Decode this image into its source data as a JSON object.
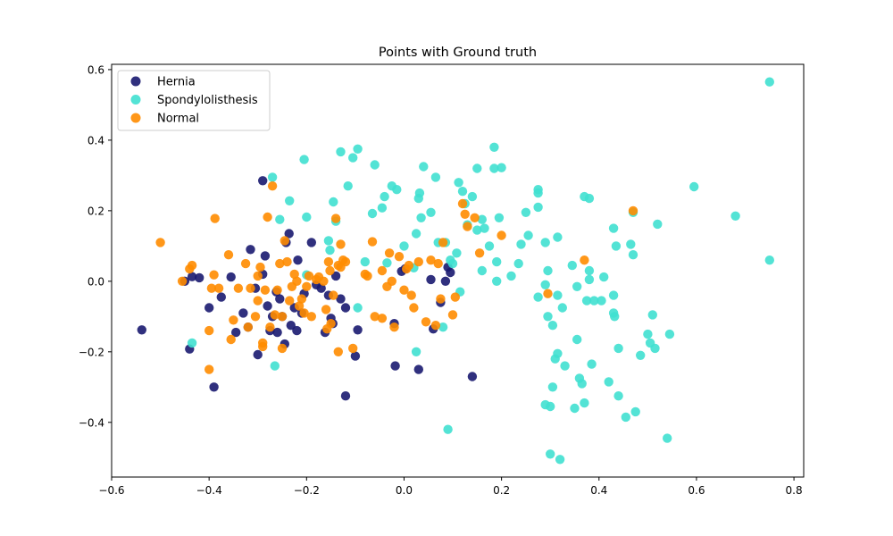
{
  "chart_data": {
    "type": "scatter",
    "title": "Points with Ground truth",
    "xlabel": "",
    "ylabel": "",
    "xlim": [
      -0.6,
      0.82
    ],
    "ylim": [
      -0.555,
      0.615
    ],
    "xticks": [
      -0.6,
      -0.4,
      -0.2,
      0.0,
      0.2,
      0.4,
      0.6,
      0.8
    ],
    "yticks": [
      -0.4,
      -0.2,
      0.0,
      0.2,
      0.4,
      0.6
    ],
    "xtick_labels": [
      "−0.6",
      "−0.4",
      "−0.2",
      "0.0",
      "0.2",
      "0.4",
      "0.6",
      "0.8"
    ],
    "ytick_labels": [
      "−0.4",
      "−0.2",
      "0.0",
      "0.2",
      "0.4",
      "0.6"
    ],
    "grid": false,
    "legend_position": "top-left",
    "series": [
      {
        "name": "Hernia",
        "color": "#191970",
        "points": [
          [
            -0.538,
            -0.138
          ],
          [
            -0.45,
            0.0
          ],
          [
            -0.435,
            0.013
          ],
          [
            -0.44,
            -0.192
          ],
          [
            -0.42,
            0.01
          ],
          [
            -0.4,
            -0.075
          ],
          [
            -0.39,
            -0.3
          ],
          [
            -0.375,
            -0.045
          ],
          [
            -0.355,
            0.012
          ],
          [
            -0.345,
            -0.145
          ],
          [
            -0.33,
            -0.09
          ],
          [
            -0.32,
            -0.13
          ],
          [
            -0.315,
            0.09
          ],
          [
            -0.305,
            -0.02
          ],
          [
            -0.3,
            -0.208
          ],
          [
            -0.29,
            0.285
          ],
          [
            -0.29,
            0.02
          ],
          [
            -0.285,
            0.072
          ],
          [
            -0.28,
            -0.07
          ],
          [
            -0.275,
            -0.14
          ],
          [
            -0.27,
            -0.1
          ],
          [
            -0.262,
            -0.03
          ],
          [
            -0.26,
            -0.145
          ],
          [
            -0.255,
            -0.05
          ],
          [
            -0.25,
            -0.1
          ],
          [
            -0.245,
            -0.178
          ],
          [
            -0.242,
            0.11
          ],
          [
            -0.236,
            0.135
          ],
          [
            -0.232,
            -0.125
          ],
          [
            -0.225,
            -0.075
          ],
          [
            -0.22,
            -0.14
          ],
          [
            -0.218,
            0.06
          ],
          [
            -0.21,
            -0.09
          ],
          [
            -0.205,
            -0.035
          ],
          [
            -0.19,
            0.11
          ],
          [
            -0.18,
            -0.01
          ],
          [
            -0.17,
            -0.02
          ],
          [
            -0.162,
            -0.145
          ],
          [
            -0.155,
            -0.04
          ],
          [
            -0.15,
            -0.105
          ],
          [
            -0.146,
            -0.12
          ],
          [
            -0.14,
            0.015
          ],
          [
            -0.13,
            -0.05
          ],
          [
            -0.12,
            -0.075
          ],
          [
            -0.12,
            -0.325
          ],
          [
            -0.1,
            -0.212
          ],
          [
            -0.095,
            -0.138
          ],
          [
            -0.02,
            -0.12
          ],
          [
            -0.018,
            -0.24
          ],
          [
            -0.005,
            0.028
          ],
          [
            0.002,
            0.035
          ],
          [
            0.03,
            -0.25
          ],
          [
            0.055,
            0.005
          ],
          [
            0.06,
            -0.135
          ],
          [
            0.075,
            -0.06
          ],
          [
            0.085,
            0.0
          ],
          [
            0.09,
            0.04
          ],
          [
            0.095,
            0.025
          ],
          [
            0.14,
            -0.27
          ]
        ]
      },
      {
        "name": "Spondylolisthesis",
        "color": "#40e0d0",
        "points": [
          [
            -0.435,
            -0.175
          ],
          [
            -0.27,
            0.295
          ],
          [
            -0.265,
            -0.24
          ],
          [
            -0.255,
            0.175
          ],
          [
            -0.235,
            0.228
          ],
          [
            -0.205,
            0.345
          ],
          [
            -0.2,
            0.182
          ],
          [
            -0.2,
            0.018
          ],
          [
            -0.155,
            0.115
          ],
          [
            -0.152,
            0.088
          ],
          [
            -0.145,
            0.225
          ],
          [
            -0.14,
            0.17
          ],
          [
            -0.13,
            0.367
          ],
          [
            -0.115,
            0.27
          ],
          [
            -0.105,
            0.35
          ],
          [
            -0.095,
            0.375
          ],
          [
            -0.095,
            -0.075
          ],
          [
            -0.08,
            0.055
          ],
          [
            -0.065,
            0.192
          ],
          [
            -0.06,
            0.33
          ],
          [
            -0.045,
            0.208
          ],
          [
            -0.04,
            0.24
          ],
          [
            -0.035,
            0.052
          ],
          [
            -0.025,
            0.27
          ],
          [
            -0.015,
            0.26
          ],
          [
            0.0,
            0.1
          ],
          [
            0.02,
            0.038
          ],
          [
            0.025,
            -0.2
          ],
          [
            0.025,
            0.135
          ],
          [
            0.03,
            0.235
          ],
          [
            0.032,
            0.25
          ],
          [
            0.035,
            0.18
          ],
          [
            0.04,
            0.325
          ],
          [
            0.055,
            0.195
          ],
          [
            0.065,
            0.295
          ],
          [
            0.07,
            0.11
          ],
          [
            0.085,
            0.11
          ],
          [
            0.08,
            -0.13
          ],
          [
            0.09,
            -0.42
          ],
          [
            0.095,
            0.06
          ],
          [
            0.1,
            0.05
          ],
          [
            0.108,
            0.08
          ],
          [
            0.112,
            0.28
          ],
          [
            0.115,
            -0.03
          ],
          [
            0.12,
            0.255
          ],
          [
            0.125,
            0.22
          ],
          [
            0.13,
            0.16
          ],
          [
            0.14,
            0.24
          ],
          [
            0.15,
            0.32
          ],
          [
            0.15,
            0.145
          ],
          [
            0.16,
            0.175
          ],
          [
            0.16,
            0.03
          ],
          [
            0.165,
            0.15
          ],
          [
            0.175,
            0.1
          ],
          [
            0.185,
            0.38
          ],
          [
            0.185,
            0.32
          ],
          [
            0.19,
            0.0
          ],
          [
            0.19,
            0.055
          ],
          [
            0.195,
            0.18
          ],
          [
            0.2,
            0.322
          ],
          [
            0.22,
            0.015
          ],
          [
            0.235,
            0.05
          ],
          [
            0.24,
            0.105
          ],
          [
            0.25,
            0.195
          ],
          [
            0.255,
            0.13
          ],
          [
            0.275,
            0.21
          ],
          [
            0.275,
            0.26
          ],
          [
            0.275,
            0.25
          ],
          [
            0.275,
            -0.045
          ],
          [
            0.29,
            -0.01
          ],
          [
            0.29,
            0.11
          ],
          [
            0.29,
            -0.35
          ],
          [
            0.295,
            0.03
          ],
          [
            0.295,
            -0.1
          ],
          [
            0.3,
            -0.355
          ],
          [
            0.3,
            -0.49
          ],
          [
            0.305,
            -0.125
          ],
          [
            0.305,
            -0.3
          ],
          [
            0.31,
            -0.22
          ],
          [
            0.315,
            -0.205
          ],
          [
            0.315,
            0.125
          ],
          [
            0.315,
            -0.04
          ],
          [
            0.32,
            -0.505
          ],
          [
            0.325,
            -0.075
          ],
          [
            0.33,
            -0.24
          ],
          [
            0.345,
            0.045
          ],
          [
            0.35,
            -0.36
          ],
          [
            0.355,
            -0.015
          ],
          [
            0.355,
            -0.165
          ],
          [
            0.36,
            -0.275
          ],
          [
            0.365,
            -0.29
          ],
          [
            0.37,
            0.24
          ],
          [
            0.37,
            -0.345
          ],
          [
            0.375,
            -0.055
          ],
          [
            0.38,
            0.03
          ],
          [
            0.38,
            0.235
          ],
          [
            0.38,
            0.005
          ],
          [
            0.385,
            -0.235
          ],
          [
            0.39,
            -0.055
          ],
          [
            0.405,
            -0.055
          ],
          [
            0.41,
            0.012
          ],
          [
            0.42,
            -0.285
          ],
          [
            0.43,
            -0.04
          ],
          [
            0.43,
            -0.09
          ],
          [
            0.43,
            0.15
          ],
          [
            0.432,
            -0.1
          ],
          [
            0.435,
            0.1
          ],
          [
            0.44,
            -0.325
          ],
          [
            0.44,
            -0.19
          ],
          [
            0.455,
            -0.385
          ],
          [
            0.465,
            0.105
          ],
          [
            0.47,
            0.195
          ],
          [
            0.47,
            0.075
          ],
          [
            0.475,
            -0.37
          ],
          [
            0.485,
            -0.21
          ],
          [
            0.5,
            -0.15
          ],
          [
            0.505,
            -0.175
          ],
          [
            0.51,
            -0.095
          ],
          [
            0.515,
            -0.19
          ],
          [
            0.52,
            0.162
          ],
          [
            0.54,
            -0.445
          ],
          [
            0.545,
            -0.15
          ],
          [
            0.595,
            0.268
          ],
          [
            0.68,
            0.185
          ],
          [
            0.75,
            0.565
          ],
          [
            0.75,
            0.06
          ]
        ]
      },
      {
        "name": "Normal",
        "color": "#ff8c00",
        "points": [
          [
            -0.5,
            0.11
          ],
          [
            -0.455,
            0.0
          ],
          [
            -0.44,
            0.035
          ],
          [
            -0.435,
            0.045
          ],
          [
            -0.4,
            -0.25
          ],
          [
            -0.4,
            -0.14
          ],
          [
            -0.395,
            -0.02
          ],
          [
            -0.39,
            0.018
          ],
          [
            -0.388,
            0.178
          ],
          [
            -0.38,
            -0.02
          ],
          [
            -0.36,
            0.075
          ],
          [
            -0.355,
            -0.165
          ],
          [
            -0.35,
            -0.11
          ],
          [
            -0.34,
            -0.02
          ],
          [
            -0.325,
            0.05
          ],
          [
            -0.32,
            -0.13
          ],
          [
            -0.315,
            -0.02
          ],
          [
            -0.305,
            -0.1
          ],
          [
            -0.3,
            0.015
          ],
          [
            -0.3,
            -0.055
          ],
          [
            -0.295,
            0.04
          ],
          [
            -0.29,
            -0.175
          ],
          [
            -0.29,
            -0.185
          ],
          [
            -0.285,
            -0.025
          ],
          [
            -0.28,
            0.182
          ],
          [
            -0.275,
            -0.13
          ],
          [
            -0.27,
            0.27
          ],
          [
            -0.265,
            -0.095
          ],
          [
            -0.26,
            -0.025
          ],
          [
            -0.255,
            0.05
          ],
          [
            -0.25,
            -0.1
          ],
          [
            -0.25,
            -0.19
          ],
          [
            -0.245,
            0.115
          ],
          [
            -0.24,
            0.055
          ],
          [
            -0.235,
            -0.055
          ],
          [
            -0.23,
            -0.015
          ],
          [
            -0.225,
            0.02
          ],
          [
            -0.22,
            0.0
          ],
          [
            -0.215,
            -0.07
          ],
          [
            -0.21,
            -0.05
          ],
          [
            -0.205,
            -0.09
          ],
          [
            -0.2,
            -0.015
          ],
          [
            -0.195,
            0.015
          ],
          [
            -0.19,
            -0.1
          ],
          [
            -0.18,
            0.005
          ],
          [
            -0.175,
            0.012
          ],
          [
            -0.165,
            0.0
          ],
          [
            -0.16,
            -0.08
          ],
          [
            -0.158,
            -0.135
          ],
          [
            -0.155,
            0.055
          ],
          [
            -0.152,
            0.03
          ],
          [
            -0.15,
            -0.12
          ],
          [
            -0.145,
            -0.04
          ],
          [
            -0.14,
            0.178
          ],
          [
            -0.135,
            0.045
          ],
          [
            -0.135,
            -0.2
          ],
          [
            -0.13,
            0.105
          ],
          [
            -0.13,
            0.04
          ],
          [
            -0.125,
            0.06
          ],
          [
            -0.12,
            0.055
          ],
          [
            -0.105,
            -0.19
          ],
          [
            -0.08,
            0.02
          ],
          [
            -0.075,
            0.015
          ],
          [
            -0.065,
            0.112
          ],
          [
            -0.06,
            -0.1
          ],
          [
            -0.045,
            -0.105
          ],
          [
            -0.045,
            0.03
          ],
          [
            -0.035,
            -0.015
          ],
          [
            -0.03,
            0.08
          ],
          [
            -0.025,
            0.0
          ],
          [
            -0.02,
            -0.13
          ],
          [
            -0.01,
            0.07
          ],
          [
            0.0,
            -0.025
          ],
          [
            0.005,
            0.035
          ],
          [
            0.01,
            0.045
          ],
          [
            0.015,
            -0.04
          ],
          [
            0.02,
            -0.075
          ],
          [
            0.03,
            0.055
          ],
          [
            0.045,
            -0.115
          ],
          [
            0.055,
            0.06
          ],
          [
            0.065,
            -0.125
          ],
          [
            0.07,
            0.05
          ],
          [
            0.075,
            -0.05
          ],
          [
            0.08,
            0.11
          ],
          [
            0.1,
            -0.095
          ],
          [
            0.105,
            -0.045
          ],
          [
            0.12,
            0.22
          ],
          [
            0.125,
            0.19
          ],
          [
            0.13,
            0.155
          ],
          [
            0.145,
            0.18
          ],
          [
            0.155,
            0.08
          ],
          [
            0.2,
            0.13
          ],
          [
            0.295,
            -0.035
          ],
          [
            0.37,
            0.06
          ],
          [
            0.47,
            0.2
          ]
        ]
      }
    ]
  }
}
